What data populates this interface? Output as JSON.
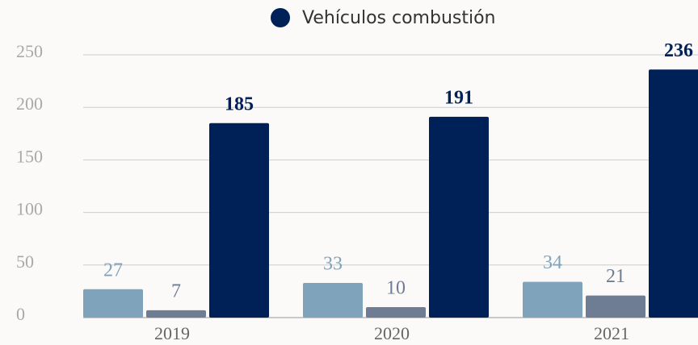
{
  "chart_data": {
    "type": "bar",
    "categories": [
      "2019",
      "2020",
      "2021"
    ],
    "series": [
      {
        "color": "#7fa3ba",
        "values": [
          27,
          33,
          34
        ]
      },
      {
        "color": "#6e7d94",
        "values": [
          7,
          10,
          21
        ]
      },
      {
        "name": "Vehículos combustión",
        "color": "#002157",
        "values": [
          185,
          191,
          236
        ]
      }
    ],
    "ylim": [
      0,
      250
    ],
    "yticks": [
      0,
      50,
      100,
      150,
      200,
      250
    ],
    "grid": true,
    "legend": "top"
  }
}
